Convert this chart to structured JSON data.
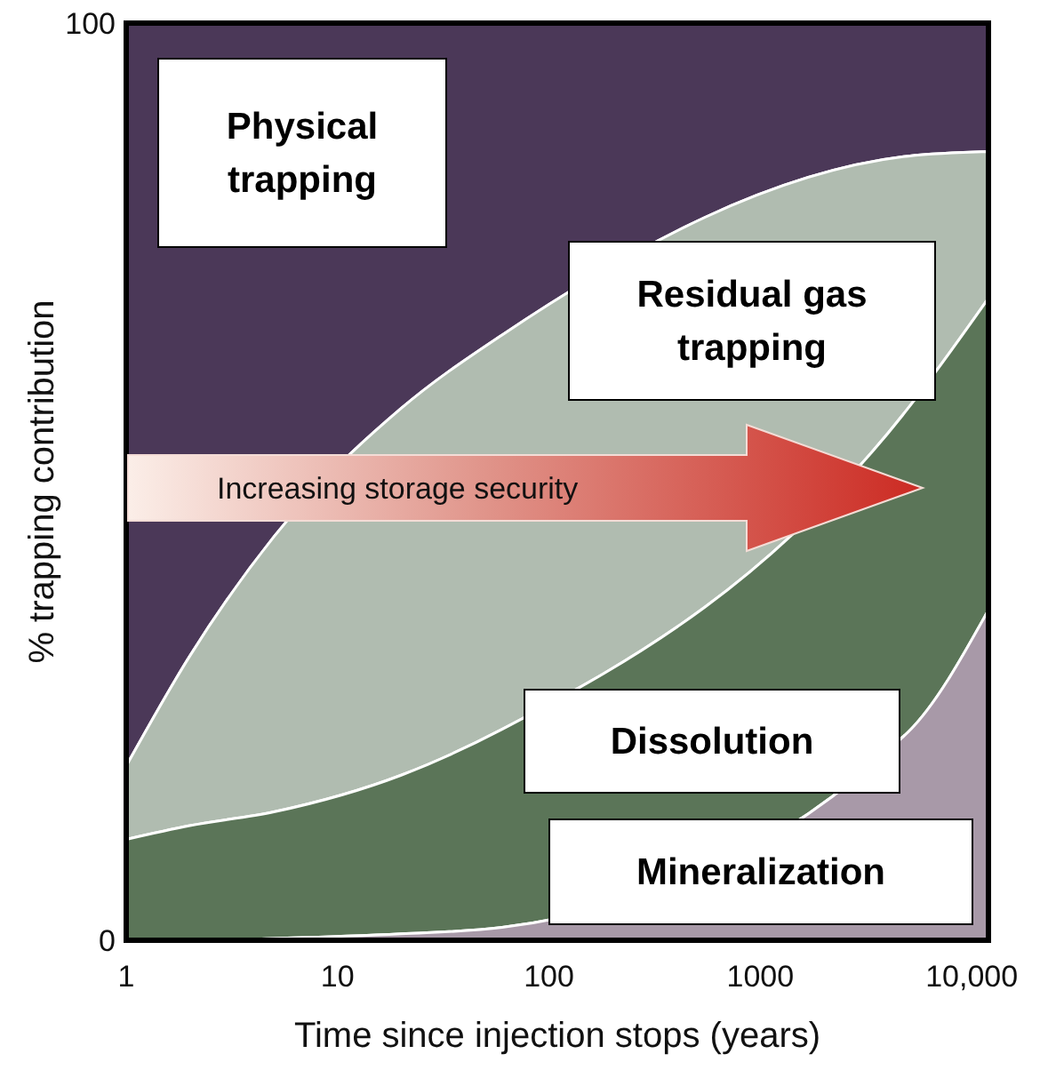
{
  "chart_data": {
    "type": "area",
    "stacked": true,
    "log": "x",
    "xlabel": "Time since injection stops (years)",
    "ylabel": "% trapping contribution",
    "x": [
      1,
      2,
      5,
      20,
      60,
      5000,
      12000
    ],
    "series": [
      {
        "name": "Mineralization",
        "color": "#a899a8",
        "values": [
          0,
          0,
          0.2,
          0.7,
          1.4,
          22.7,
          36
        ]
      },
      {
        "name": "Dissolution",
        "color": "#5b7558",
        "values": [
          11,
          12.5,
          13.8,
          17.3,
          21.6,
          35.3,
          34
        ]
      },
      {
        "name": "Residual gas trapping",
        "color": "#b0bcb0",
        "values": [
          8,
          18.5,
          30,
          40,
          43,
          27.5,
          16
        ]
      },
      {
        "name": "Physical trapping",
        "color": "#4b3858",
        "values": [
          81,
          69,
          56,
          42,
          34,
          14.5,
          14
        ]
      }
    ],
    "xlim": [
      1,
      12000
    ],
    "xticks": [
      1,
      10,
      100,
      1000,
      {
        "value": 10000,
        "label": "10,000"
      }
    ],
    "ylim": [
      0,
      100
    ],
    "yticks": [
      0,
      100
    ],
    "annotations": [
      "Increasing storage security"
    ]
  }
}
